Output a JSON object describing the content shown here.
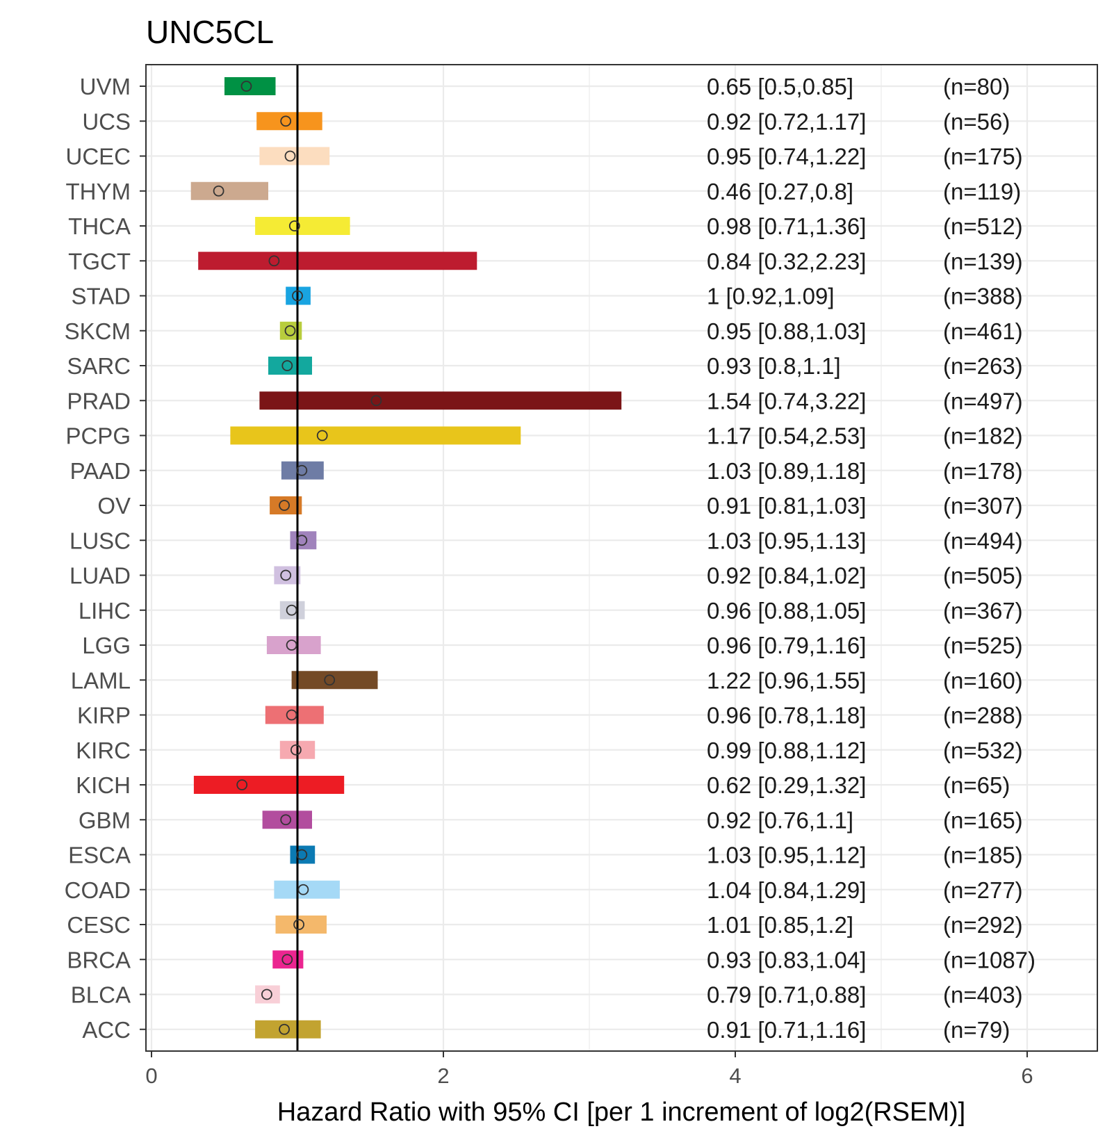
{
  "chart_data": {
    "type": "forest",
    "title": "UNC5CL",
    "xlabel": "Hazard Ratio with 95% CI [per 1 increment of log2(RSEM)]",
    "ylabel": "",
    "xlim": [
      0,
      6.5
    ],
    "xticks": [
      0,
      2,
      4,
      6
    ],
    "reference_line": 1,
    "grid": true,
    "categories": [
      "UVM",
      "UCS",
      "UCEC",
      "THYM",
      "THCA",
      "TGCT",
      "STAD",
      "SKCM",
      "SARC",
      "PRAD",
      "PCPG",
      "PAAD",
      "OV",
      "LUSC",
      "LUAD",
      "LIHC",
      "LGG",
      "LAML",
      "KIRP",
      "KIRC",
      "KICH",
      "GBM",
      "ESCA",
      "COAD",
      "CESC",
      "BRCA",
      "BLCA",
      "ACC"
    ],
    "hr": [
      0.65,
      0.92,
      0.95,
      0.46,
      0.98,
      0.84,
      1,
      0.95,
      0.93,
      1.54,
      1.17,
      1.03,
      0.91,
      1.03,
      0.92,
      0.96,
      0.96,
      1.22,
      0.96,
      0.99,
      0.62,
      0.92,
      1.03,
      1.04,
      1.01,
      0.93,
      0.79,
      0.91
    ],
    "lower": [
      0.5,
      0.72,
      0.74,
      0.27,
      0.71,
      0.32,
      0.92,
      0.88,
      0.8,
      0.74,
      0.54,
      0.89,
      0.81,
      0.95,
      0.84,
      0.88,
      0.79,
      0.96,
      0.78,
      0.88,
      0.29,
      0.76,
      0.95,
      0.84,
      0.85,
      0.83,
      0.71,
      0.71
    ],
    "upper": [
      0.85,
      1.17,
      1.22,
      0.8,
      1.36,
      2.23,
      1.09,
      1.03,
      1.1,
      3.22,
      2.53,
      1.18,
      1.03,
      1.13,
      1.02,
      1.05,
      1.16,
      1.55,
      1.18,
      1.12,
      1.32,
      1.1,
      1.12,
      1.29,
      1.2,
      1.04,
      0.88,
      1.16
    ],
    "ci_labels": [
      "0.65 [0.5,0.85]",
      "0.92 [0.72,1.17]",
      "0.95 [0.74,1.22]",
      "0.46 [0.27,0.8]",
      "0.98 [0.71,1.36]",
      "0.84 [0.32,2.23]",
      "1 [0.92,1.09]",
      "0.95 [0.88,1.03]",
      "0.93 [0.8,1.1]",
      "1.54 [0.74,3.22]",
      "1.17 [0.54,2.53]",
      "1.03 [0.89,1.18]",
      "0.91 [0.81,1.03]",
      "1.03 [0.95,1.13]",
      "0.92 [0.84,1.02]",
      "0.96 [0.88,1.05]",
      "0.96 [0.79,1.16]",
      "1.22 [0.96,1.55]",
      "0.96 [0.78,1.18]",
      "0.99 [0.88,1.12]",
      "0.62 [0.29,1.32]",
      "0.92 [0.76,1.1]",
      "1.03 [0.95,1.12]",
      "1.04 [0.84,1.29]",
      "1.01 [0.85,1.2]",
      "0.93 [0.83,1.04]",
      "0.79 [0.71,0.88]",
      "0.91 [0.71,1.16]"
    ],
    "n_labels": [
      "(n=80)",
      "(n=56)",
      "(n=175)",
      "(n=119)",
      "(n=512)",
      "(n=139)",
      "(n=388)",
      "(n=461)",
      "(n=263)",
      "(n=497)",
      "(n=182)",
      "(n=178)",
      "(n=307)",
      "(n=494)",
      "(n=505)",
      "(n=367)",
      "(n=525)",
      "(n=160)",
      "(n=288)",
      "(n=532)",
      "(n=65)",
      "(n=165)",
      "(n=185)",
      "(n=277)",
      "(n=292)",
      "(n=1087)",
      "(n=403)",
      "(n=79)"
    ],
    "colors": [
      "#009144",
      "#F7941D",
      "#FCDDBF",
      "#CCA98F",
      "#F5EB34",
      "#BD1C2F",
      "#19A4E1",
      "#B8CD3D",
      "#13A89E",
      "#7B1517",
      "#E8C51B",
      "#6E7CA5",
      "#D67A27",
      "#A083BC",
      "#D0C0E0",
      "#CFD0DB",
      "#D8A2CC",
      "#744A26",
      "#ED7074",
      "#F6A9B0",
      "#ED1C24",
      "#B24D9E",
      "#0B7AB3",
      "#A5D9F6",
      "#F4B86B",
      "#EB2590",
      "#F8CFD7",
      "#C2A330"
    ]
  }
}
